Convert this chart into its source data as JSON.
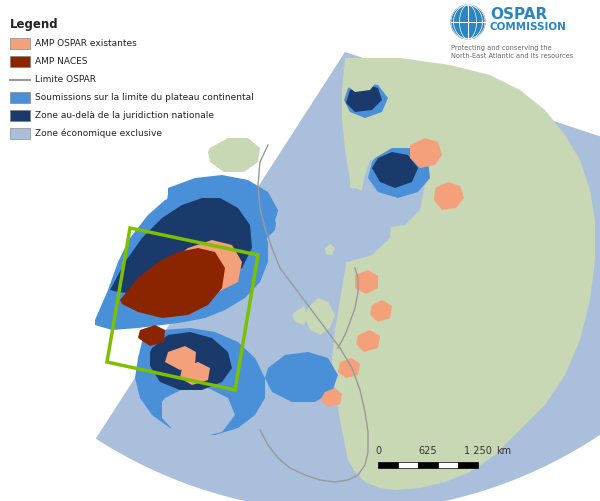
{
  "legend_title": "Legend",
  "legend_items": [
    {
      "label": "AMP OSPAR existantes",
      "color": "#F4A07A",
      "type": "patch"
    },
    {
      "label": "AMP NACES",
      "color": "#8B2500",
      "type": "patch"
    },
    {
      "label": "Limite OSPAR",
      "color": "#999999",
      "type": "line"
    },
    {
      "label": "Soumissions sur la limite du plateau continental",
      "color": "#4A90D9",
      "type": "patch"
    },
    {
      "label": "Zone au-delà de la juridiction nationale",
      "color": "#1A3A6B",
      "type": "patch"
    },
    {
      "label": "Zone économique exclusive",
      "color": "#AABFDC",
      "type": "patch"
    }
  ],
  "ospar_text1": "OSPAR",
  "ospar_text2": "COMMISSION",
  "ospar_sub": "Protecting and conserving the\nNorth-East Atlantic and its resources",
  "bg_color": "#FFFFFF",
  "land_color": "#C8D8B4",
  "eez_color": "#AABFDC",
  "submissions_color": "#4A90D9",
  "beyond_color": "#1A3A6B",
  "amp_ospar_color": "#F4A07A",
  "amp_naces_color": "#8B2500",
  "ospar_line_color": "#999999",
  "green_box_color": "#7DC000",
  "water_bg": "#FFFFFF"
}
